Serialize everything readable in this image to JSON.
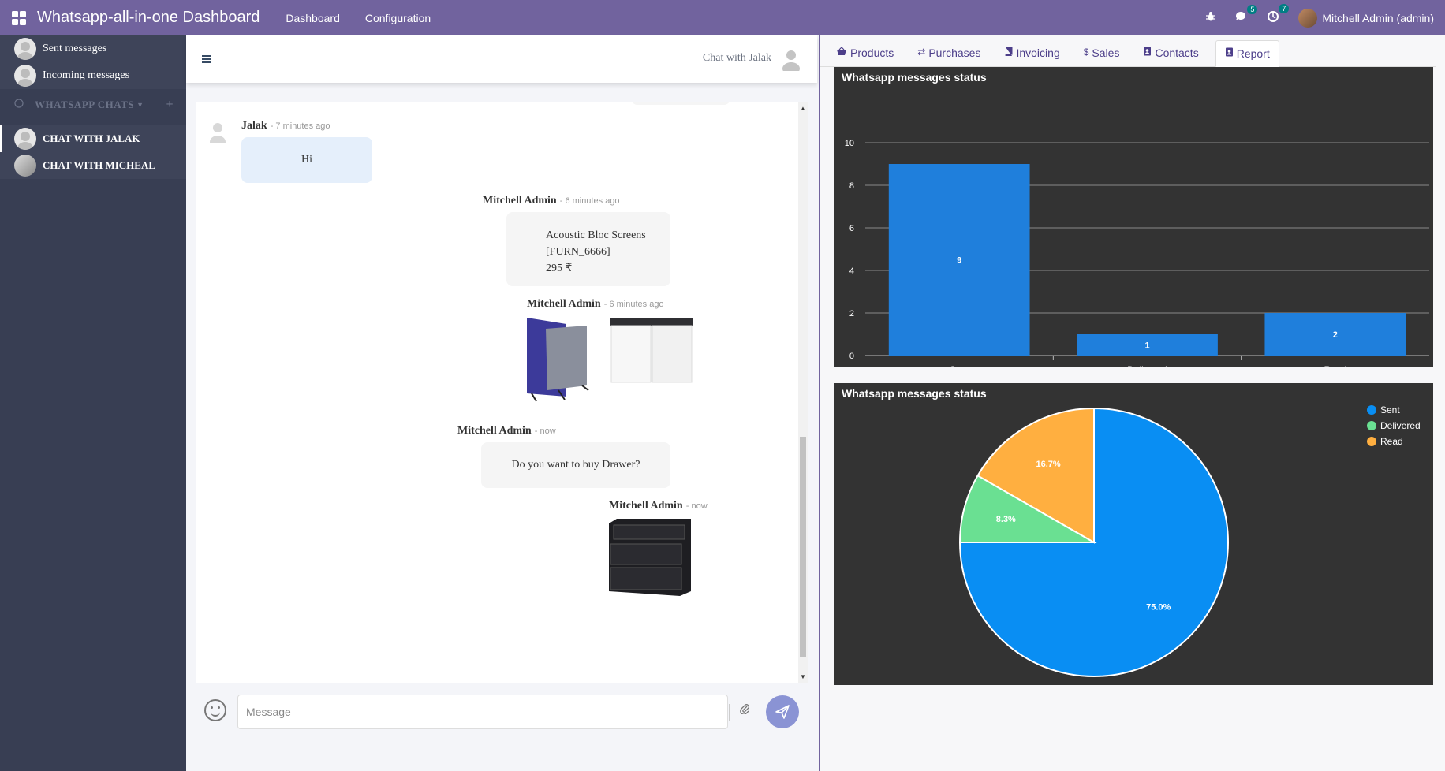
{
  "topbar": {
    "title": "Whatsapp-all-in-one Dashboard",
    "nav": [
      "Dashboard",
      "Configuration"
    ],
    "messages_badge": "5",
    "activities_badge": "7",
    "user": "Mitchell Admin (admin)"
  },
  "sidebar": {
    "items": [
      "Sent messages",
      "Incoming messages"
    ],
    "section_label": "WHATSAPP CHATS",
    "chats": [
      "CHAT WITH JALAK",
      "CHAT WITH MICHEAL"
    ]
  },
  "chat": {
    "header": "Chat with Jalak",
    "messages": [
      {
        "author": "Jalak",
        "time": "- 7 minutes ago",
        "text": "Hi"
      },
      {
        "author": "Mitchell Admin",
        "time": "- 6 minutes ago",
        "lines": [
          "Acoustic Bloc Screens",
          "[FURN_6666]",
          "295 ₹"
        ]
      },
      {
        "author": "Mitchell Admin",
        "time": "- 6 minutes ago"
      },
      {
        "author": "Mitchell Admin",
        "time": "- now",
        "text": "Do you want to buy Drawer?"
      },
      {
        "author": "Mitchell Admin",
        "time": "- now"
      }
    ],
    "input_placeholder": "Message"
  },
  "report": {
    "tabs": [
      "Products",
      "Purchases",
      "Invoicing",
      "Sales",
      "Contacts",
      "Report"
    ],
    "active_tab": "Report"
  },
  "chart_data": [
    {
      "type": "bar",
      "title": "Whatsapp messages status",
      "categories": [
        "Sent",
        "Delivered",
        "Read"
      ],
      "values": [
        9,
        1,
        2
      ],
      "ylim": [
        0,
        10
      ],
      "yticks": [
        0,
        2,
        4,
        6,
        8,
        10
      ],
      "color": "#1f7fdc",
      "background": "#333333",
      "grid": true
    },
    {
      "type": "pie",
      "title": "Whatsapp messages status",
      "categories": [
        "Sent",
        "Delivered",
        "Read"
      ],
      "values": [
        75.0,
        8.3,
        16.7
      ],
      "labels": [
        "75.0%",
        "8.3%",
        "16.7%"
      ],
      "colors": [
        "#098ef3",
        "#6ae092",
        "#ffaf40"
      ],
      "legend": "top-right",
      "background": "#333333"
    }
  ]
}
